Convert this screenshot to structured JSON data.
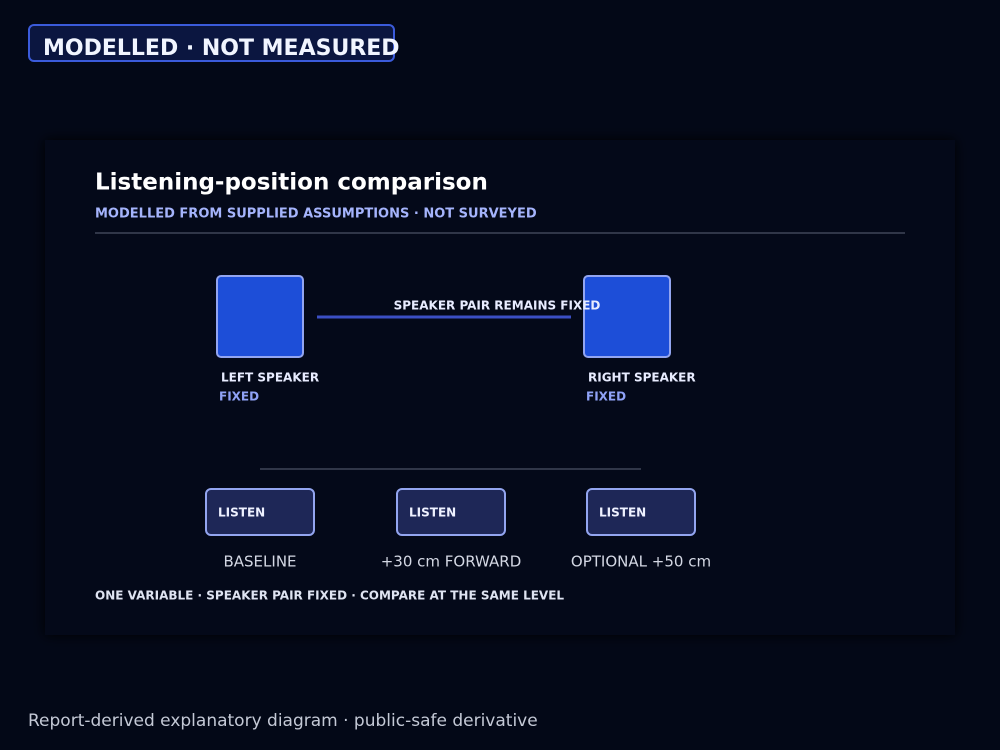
{
  "badge": "MODELLED · NOT MEASURED",
  "panel": {
    "title": "Listening-position comparison",
    "subtitle": "MODELLED FROM SUPPLIED ASSUMPTIONS · NOT SURVEYED",
    "speakers": [
      {
        "label": "LEFT SPEAKER",
        "status": "FIXED"
      },
      {
        "label": "RIGHT SPEAKER",
        "status": "FIXED"
      }
    ],
    "connector_label": "SPEAKER PAIR REMAINS FIXED",
    "positions": [
      {
        "box": "LISTEN",
        "caption": "BASELINE"
      },
      {
        "box": "LISTEN",
        "caption": "+30 cm FORWARD"
      },
      {
        "box": "LISTEN",
        "caption": "OPTIONAL +50 cm"
      }
    ],
    "note": "ONE VARIABLE · SPEAKER PAIR FIXED · COMPARE AT THE SAME LEVEL"
  },
  "footer": "Report-derived explanatory diagram · public-safe derivative"
}
